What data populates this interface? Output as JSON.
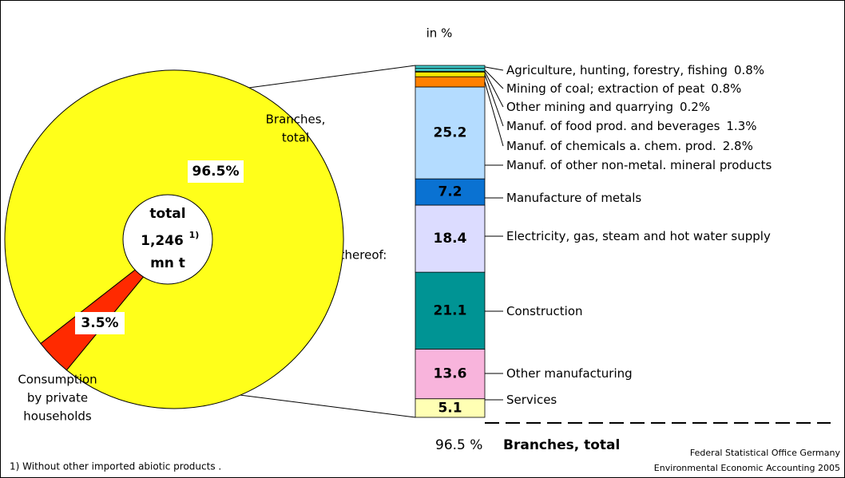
{
  "chart_data": [
    {
      "type": "pie",
      "categories": [
        [
          "Branches,",
          "total"
        ],
        [
          "Consumption",
          "by private",
          "households"
        ]
      ],
      "values": [
        96.5,
        3.5
      ],
      "value_labels": [
        "96.5%",
        "3.5%"
      ],
      "colors": [
        "#ffff1a",
        "#ff2a00"
      ],
      "center_text": [
        "total",
        "1,246",
        "1)",
        "mn t"
      ]
    },
    {
      "type": "stacked-bar",
      "title": "in %",
      "annotation": "thereof:",
      "categories": [
        "Services",
        "Other manufacturing",
        "Construction",
        "Electricity, gas, steam and hot water supply",
        "Manufacture of metals",
        "Manuf. of other non-metal. mineral products",
        "Manuf. of chemicals a. chem. prod.",
        "Manuf. of food prod. and beverages",
        "Other mining and quarrying",
        "Mining of coal; extraction of peat",
        "Agriculture, hunting, forestry, fishing"
      ],
      "values": [
        5.1,
        13.6,
        21.1,
        18.4,
        7.2,
        25.2,
        2.8,
        1.3,
        0.2,
        0.8,
        0.8
      ],
      "value_labels": [
        "5.1",
        "13.6",
        "21.1",
        "18.4",
        "7.2",
        "25.2",
        "2.8%",
        "1.3%",
        "0.2%",
        "0.8%",
        "0.8%"
      ],
      "colors": [
        "#ffffb4",
        "#f8b4dc",
        "#009494",
        "#dcdcff",
        "#0a72d2",
        "#b4dcff",
        "#ff8000",
        "#f5e600",
        "#b4e650",
        "#40c8c8",
        "#40c8c8"
      ],
      "total": {
        "value": 96.5,
        "label": "96.5 %",
        "name": "Branches, total"
      }
    }
  ],
  "footnote": "1) Without other imported abiotic products .",
  "source": [
    "Federal Statistical Office Germany",
    "Environmental Economic Accounting 2005"
  ]
}
